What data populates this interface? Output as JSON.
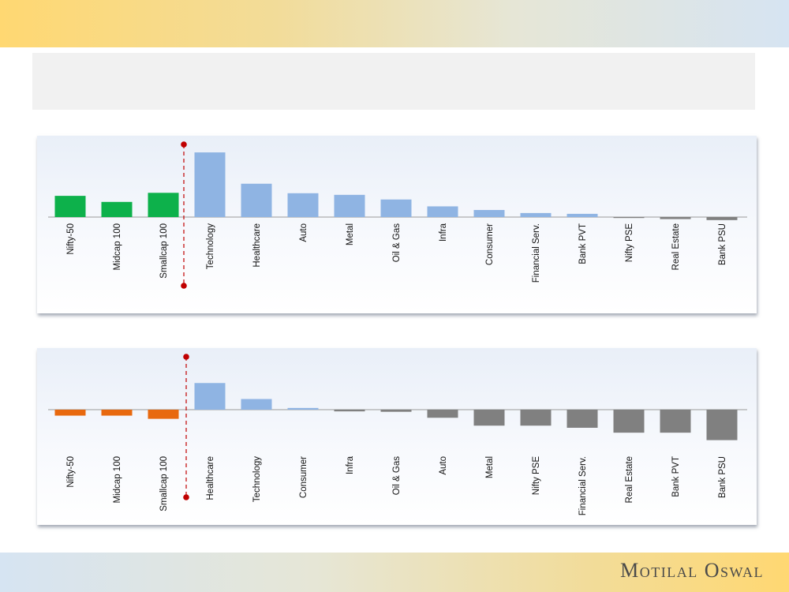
{
  "brand": {
    "logo_text": "Motilal Oswal"
  },
  "colors": {
    "index_bar_chart1": "#0db14b",
    "index_bar_chart2": "#e8690f",
    "sector_positive": "#8fb4e3",
    "sector_negative": "#808080",
    "divider_line": "#c00000",
    "top_band": "#ffd872",
    "bottom_band": "#d6e4f2"
  },
  "chart_data": [
    {
      "type": "bar",
      "title": "",
      "xlabel": "",
      "ylabel": "",
      "categories": [
        "Nifty-50",
        "Midcap 100",
        "Smallcap 100",
        "Technology",
        "Healthcare",
        "Auto",
        "Metal",
        "Oil & Gas",
        "Infra",
        "Consumer",
        "Financial Serv.",
        "Bank PVT",
        "Nifty PSE",
        "Real Estate",
        "Bank PSU"
      ],
      "values": [
        10.5,
        7.5,
        12.0,
        32.0,
        16.5,
        11.8,
        11.0,
        8.7,
        5.3,
        3.5,
        2.0,
        1.6,
        -0.4,
        -1.0,
        -1.5
      ],
      "index_count": 3,
      "ylim": [
        -2,
        35
      ],
      "grid": false,
      "legend": "none"
    },
    {
      "type": "bar",
      "title": "",
      "xlabel": "",
      "ylabel": "",
      "categories": [
        "Nifty-50",
        "Midcap 100",
        "Smallcap 100",
        "Healthcare",
        "Technology",
        "Consumer",
        "Infra",
        "Oil & Gas",
        "Auto",
        "Metal",
        "Nifty PSE",
        "Financial Serv.",
        "Real Estate",
        "Bank PVT",
        "Bank PSU"
      ],
      "values": [
        -2.8,
        -2.8,
        -4.3,
        12.5,
        5.0,
        0.8,
        -0.8,
        -1.0,
        -3.8,
        -7.5,
        -7.5,
        -8.5,
        -10.8,
        -10.8,
        -14.3
      ],
      "index_count": 3,
      "ylim": [
        -16,
        15
      ],
      "grid": false,
      "legend": "none"
    }
  ]
}
